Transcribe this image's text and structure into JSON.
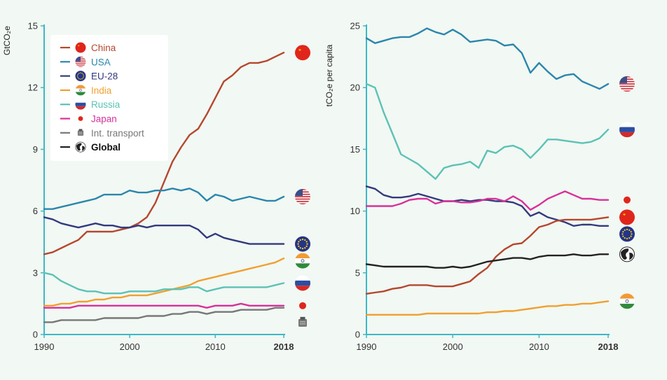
{
  "colors": {
    "China": "#b5472f",
    "USA": "#2a86ad",
    "EU-28": "#323a7e",
    "India": "#f0a030",
    "Russia": "#5cc2b6",
    "Japan": "#d8319b",
    "Int. transport": "#777777",
    "Global": "#222222",
    "axis": "#3cb8c8"
  },
  "legend": [
    {
      "name": "China",
      "icon": "china-flag-icon"
    },
    {
      "name": "USA",
      "icon": "usa-flag-icon"
    },
    {
      "name": "EU-28",
      "icon": "eu-flag-icon"
    },
    {
      "name": "India",
      "icon": "india-flag-icon"
    },
    {
      "name": "Russia",
      "icon": "russia-flag-icon"
    },
    {
      "name": "Japan",
      "icon": "japan-flag-icon"
    },
    {
      "name": "Int. transport",
      "icon": "ship-icon"
    },
    {
      "name": "Global",
      "icon": "globe-icon"
    }
  ],
  "chart_data": [
    {
      "type": "line",
      "title": "",
      "xlabel": "",
      "ylabel": "GtCO₂e",
      "xlim": [
        1990,
        2018
      ],
      "ylim": [
        0,
        15
      ],
      "xticks": [
        "1990",
        "2000",
        "2010",
        "2018"
      ],
      "yticks": [
        "0",
        "3",
        "6",
        "9",
        "12",
        "15"
      ],
      "x": [
        1990,
        1991,
        1992,
        1993,
        1994,
        1995,
        1996,
        1997,
        1998,
        1999,
        2000,
        2001,
        2002,
        2003,
        2004,
        2005,
        2006,
        2007,
        2008,
        2009,
        2010,
        2011,
        2012,
        2013,
        2014,
        2015,
        2016,
        2017,
        2018
      ],
      "series": [
        {
          "name": "China",
          "values": [
            3.9,
            4.0,
            4.2,
            4.4,
            4.6,
            5.0,
            5.0,
            5.0,
            5.0,
            5.1,
            5.2,
            5.4,
            5.7,
            6.4,
            7.4,
            8.4,
            9.1,
            9.7,
            10.0,
            10.7,
            11.5,
            12.3,
            12.6,
            13.0,
            13.2,
            13.2,
            13.3,
            13.5,
            13.7
          ]
        },
        {
          "name": "USA",
          "values": [
            6.1,
            6.1,
            6.2,
            6.3,
            6.4,
            6.5,
            6.6,
            6.8,
            6.8,
            6.8,
            7.0,
            6.9,
            6.9,
            7.0,
            7.0,
            7.1,
            7.0,
            7.1,
            6.9,
            6.5,
            6.8,
            6.7,
            6.5,
            6.6,
            6.7,
            6.6,
            6.5,
            6.5,
            6.7
          ]
        },
        {
          "name": "EU-28",
          "values": [
            5.7,
            5.6,
            5.4,
            5.3,
            5.2,
            5.3,
            5.4,
            5.3,
            5.3,
            5.2,
            5.2,
            5.3,
            5.2,
            5.3,
            5.3,
            5.3,
            5.3,
            5.3,
            5.1,
            4.7,
            4.9,
            4.7,
            4.6,
            4.5,
            4.4,
            4.4,
            4.4,
            4.4,
            4.4
          ]
        },
        {
          "name": "India",
          "values": [
            1.4,
            1.4,
            1.5,
            1.5,
            1.6,
            1.6,
            1.7,
            1.7,
            1.8,
            1.8,
            1.9,
            1.9,
            1.9,
            2.0,
            2.1,
            2.2,
            2.3,
            2.4,
            2.6,
            2.7,
            2.8,
            2.9,
            3.0,
            3.1,
            3.2,
            3.3,
            3.4,
            3.5,
            3.7
          ]
        },
        {
          "name": "Russia",
          "values": [
            3.0,
            2.9,
            2.6,
            2.4,
            2.2,
            2.1,
            2.1,
            2.0,
            2.0,
            2.0,
            2.1,
            2.1,
            2.1,
            2.1,
            2.2,
            2.2,
            2.2,
            2.3,
            2.3,
            2.1,
            2.2,
            2.3,
            2.3,
            2.3,
            2.3,
            2.3,
            2.3,
            2.4,
            2.5
          ]
        },
        {
          "name": "Japan",
          "values": [
            1.3,
            1.3,
            1.3,
            1.3,
            1.4,
            1.4,
            1.4,
            1.4,
            1.4,
            1.4,
            1.4,
            1.4,
            1.4,
            1.4,
            1.4,
            1.4,
            1.4,
            1.4,
            1.4,
            1.3,
            1.4,
            1.4,
            1.4,
            1.5,
            1.4,
            1.4,
            1.4,
            1.4,
            1.4
          ]
        },
        {
          "name": "Int. transport",
          "values": [
            0.6,
            0.6,
            0.7,
            0.7,
            0.7,
            0.7,
            0.7,
            0.8,
            0.8,
            0.8,
            0.8,
            0.8,
            0.9,
            0.9,
            0.9,
            1.0,
            1.0,
            1.1,
            1.1,
            1.0,
            1.1,
            1.1,
            1.1,
            1.2,
            1.2,
            1.2,
            1.2,
            1.3,
            1.3
          ]
        }
      ]
    },
    {
      "type": "line",
      "title": "",
      "xlabel": "",
      "ylabel": "tCO₂e per capita",
      "xlim": [
        1990,
        2018
      ],
      "ylim": [
        0,
        25
      ],
      "xticks": [
        "1990",
        "2000",
        "2010",
        "2018"
      ],
      "yticks": [
        "0",
        "5",
        "10",
        "15",
        "20",
        "25"
      ],
      "x": [
        1990,
        1991,
        1992,
        1993,
        1994,
        1995,
        1996,
        1997,
        1998,
        1999,
        2000,
        2001,
        2002,
        2003,
        2004,
        2005,
        2006,
        2007,
        2008,
        2009,
        2010,
        2011,
        2012,
        2013,
        2014,
        2015,
        2016,
        2017,
        2018
      ],
      "series": [
        {
          "name": "USA",
          "values": [
            24.0,
            23.6,
            23.8,
            24.0,
            24.1,
            24.1,
            24.4,
            24.8,
            24.5,
            24.3,
            24.7,
            24.3,
            23.7,
            23.8,
            23.9,
            23.8,
            23.4,
            23.5,
            22.8,
            21.2,
            22.0,
            21.3,
            20.7,
            21.0,
            21.1,
            20.5,
            20.2,
            19.9,
            20.3
          ]
        },
        {
          "name": "Russia",
          "values": [
            20.3,
            20.0,
            18.0,
            16.3,
            14.6,
            14.2,
            13.8,
            13.2,
            12.6,
            13.5,
            13.7,
            13.8,
            14.0,
            13.5,
            14.9,
            14.7,
            15.2,
            15.3,
            15.0,
            14.3,
            15.0,
            15.8,
            15.8,
            15.7,
            15.6,
            15.5,
            15.6,
            15.9,
            16.6
          ]
        },
        {
          "name": "EU-28",
          "values": [
            12.0,
            11.8,
            11.3,
            11.1,
            11.1,
            11.2,
            11.4,
            11.2,
            11.0,
            10.8,
            10.8,
            10.9,
            10.8,
            10.9,
            10.9,
            10.8,
            10.8,
            10.7,
            10.4,
            9.6,
            9.9,
            9.5,
            9.3,
            9.1,
            8.8,
            8.9,
            8.9,
            8.8,
            8.8
          ]
        },
        {
          "name": "Japan",
          "values": [
            10.4,
            10.4,
            10.4,
            10.4,
            10.6,
            10.9,
            11.0,
            11.0,
            10.6,
            10.8,
            10.8,
            10.7,
            10.7,
            10.8,
            11.0,
            11.0,
            10.8,
            11.2,
            10.8,
            10.1,
            10.5,
            11.0,
            11.3,
            11.6,
            11.3,
            11.0,
            11.0,
            10.9,
            10.9
          ]
        },
        {
          "name": "China",
          "values": [
            3.3,
            3.4,
            3.5,
            3.7,
            3.8,
            4.0,
            4.0,
            4.0,
            3.9,
            3.9,
            3.9,
            4.1,
            4.3,
            4.9,
            5.4,
            6.3,
            6.9,
            7.3,
            7.4,
            8.0,
            8.7,
            8.9,
            9.2,
            9.3,
            9.3,
            9.3,
            9.3,
            9.4,
            9.5
          ]
        },
        {
          "name": "Global",
          "values": [
            5.7,
            5.6,
            5.5,
            5.5,
            5.5,
            5.5,
            5.5,
            5.5,
            5.4,
            5.4,
            5.5,
            5.4,
            5.5,
            5.7,
            5.9,
            6.0,
            6.1,
            6.2,
            6.2,
            6.1,
            6.3,
            6.4,
            6.4,
            6.4,
            6.5,
            6.4,
            6.4,
            6.5,
            6.5
          ]
        },
        {
          "name": "India",
          "values": [
            1.6,
            1.6,
            1.6,
            1.6,
            1.6,
            1.6,
            1.6,
            1.7,
            1.7,
            1.7,
            1.7,
            1.7,
            1.7,
            1.7,
            1.8,
            1.8,
            1.9,
            1.9,
            2.0,
            2.1,
            2.2,
            2.3,
            2.3,
            2.4,
            2.4,
            2.5,
            2.5,
            2.6,
            2.7
          ]
        }
      ]
    }
  ]
}
